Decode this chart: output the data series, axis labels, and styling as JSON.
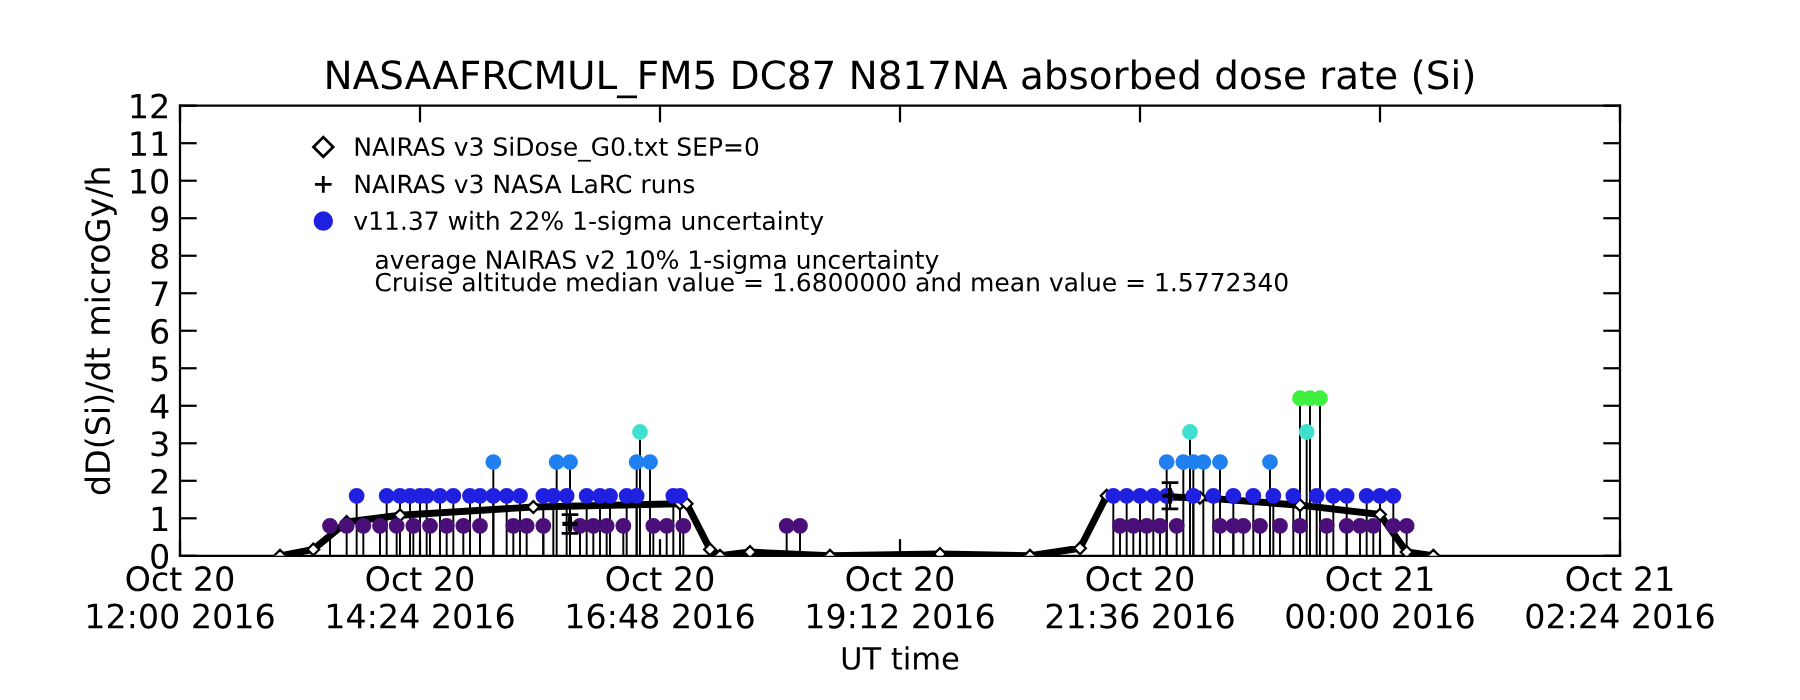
{
  "chart_data": {
    "type": "line",
    "title": "NASAAFRCMUL_FM5 DC87 N817NA absorbed dose rate (Si)",
    "xlabel": "UT time",
    "ylabel": "dD(Si)/dt microGy/h",
    "xlim": [
      "2016-10-20T12:00",
      "2016-10-21T02:24"
    ],
    "xticks": [
      {
        "value": "2016-10-20T12:00",
        "label": "Oct 20\n12:00 2016"
      },
      {
        "value": "2016-10-20T14:24",
        "label": "Oct 20\n14:24 2016"
      },
      {
        "value": "2016-10-20T16:48",
        "label": "Oct 20\n16:48 2016"
      },
      {
        "value": "2016-10-20T19:12",
        "label": "Oct 20\n19:12 2016"
      },
      {
        "value": "2016-10-20T21:36",
        "label": "Oct 20\n21:36 2016"
      },
      {
        "value": "2016-10-21T00:00",
        "label": "Oct 21\n00:00 2016"
      },
      {
        "value": "2016-10-21T02:24",
        "label": "Oct 21\n02:24 2016"
      }
    ],
    "ylim": [
      0,
      12
    ],
    "yticks": [
      0,
      1,
      2,
      3,
      4,
      5,
      6,
      7,
      8,
      9,
      10,
      11,
      12
    ],
    "grid": false,
    "legend": "top left",
    "annotations": [
      "average NAIRAS v2 10% 1-sigma uncertainty",
      "Cruise altitude median value = 1.6800000 and mean value = 1.5772340"
    ],
    "series": [
      {
        "name": "NAIRAS v3 SiDose_G0.txt SEP=0",
        "marker": "diamond",
        "color": "#000000",
        "x": [
          "2016-10-20T13:00",
          "2016-10-20T13:20",
          "2016-10-20T13:40",
          "2016-10-20T14:12",
          "2016-10-20T15:32",
          "2016-10-20T17:00",
          "2016-10-20T17:04",
          "2016-10-20T17:18",
          "2016-10-20T17:24",
          "2016-10-20T17:42",
          "2016-10-20T18:30",
          "2016-10-20T19:36",
          "2016-10-20T20:30",
          "2016-10-20T21:00",
          "2016-10-20T21:16",
          "2016-10-20T22:12",
          "2016-10-20T23:12",
          "2016-10-21T00:00",
          "2016-10-21T00:16",
          "2016-10-21T00:32"
        ],
        "values": [
          0,
          0.17,
          0.9,
          1.08,
          1.3,
          1.39,
          1.39,
          0.17,
          0,
          0.1,
          0,
          0.05,
          0,
          0.2,
          1.6,
          1.55,
          1.35,
          1.1,
          0.1,
          0
        ]
      },
      {
        "name": "NAIRAS v3 NASA LaRC runs",
        "type": "scatter",
        "marker": "cross",
        "color": "#000000",
        "x": [
          "2016-10-20T15:54",
          "2016-10-20T21:54"
        ],
        "values": [
          0.85,
          1.6
        ],
        "errors": [
          0.25,
          0.35
        ]
      },
      {
        "name": "v11.37 with 22% 1-sigma uncertainty",
        "type": "lollipop",
        "marker": "circle",
        "color": "#2020e0",
        "x": [
          "2016-10-20T13:46",
          "2016-10-20T14:04",
          "2016-10-20T14:12",
          "2016-10-20T14:18",
          "2016-10-20T14:24",
          "2016-10-20T14:28",
          "2016-10-20T14:36",
          "2016-10-20T14:44",
          "2016-10-20T14:54",
          "2016-10-20T15:00",
          "2016-10-20T15:08",
          "2016-10-20T15:16",
          "2016-10-20T15:24",
          "2016-10-20T15:38",
          "2016-10-20T15:44",
          "2016-10-20T15:52",
          "2016-10-20T16:04",
          "2016-10-20T16:12",
          "2016-10-20T16:18",
          "2016-10-20T16:28",
          "2016-10-20T16:34",
          "2016-10-20T16:56",
          "2016-10-20T17:00",
          "2016-10-20T13:30",
          "2016-10-20T13:40",
          "2016-10-20T13:50",
          "2016-10-20T14:00",
          "2016-10-20T14:10",
          "2016-10-20T14:20",
          "2016-10-20T14:30",
          "2016-10-20T14:40",
          "2016-10-20T14:50",
          "2016-10-20T15:00",
          "2016-10-20T15:20",
          "2016-10-20T15:28",
          "2016-10-20T15:38",
          "2016-10-20T16:00",
          "2016-10-20T16:08",
          "2016-10-20T16:16",
          "2016-10-20T16:26",
          "2016-10-20T16:44",
          "2016-10-20T16:52",
          "2016-10-20T17:02",
          "2016-10-20T18:04",
          "2016-10-20T18:12",
          "2016-10-20T15:08",
          "2016-10-20T15:46",
          "2016-10-20T15:54",
          "2016-10-20T16:34",
          "2016-10-20T16:42",
          "2016-10-20T16:36",
          "2016-10-20T21:24",
          "2016-10-20T21:32",
          "2016-10-20T21:40",
          "2016-10-20T21:48",
          "2016-10-20T21:58",
          "2016-10-20T22:24",
          "2016-10-20T22:32",
          "2016-10-20T22:38",
          "2016-10-20T22:48",
          "2016-10-20T23:00",
          "2016-10-20T23:12",
          "2016-10-20T23:28",
          "2016-10-20T23:40",
          "2016-10-20T23:48",
          "2016-10-20T23:56",
          "2016-10-21T00:08",
          "2016-10-21T00:16",
          "2016-10-20T21:20",
          "2016-10-20T21:28",
          "2016-10-20T21:36",
          "2016-10-20T21:44",
          "2016-10-20T21:52",
          "2016-10-20T22:08",
          "2016-10-20T22:20",
          "2016-10-20T22:32",
          "2016-10-20T22:44",
          "2016-10-20T22:56",
          "2016-10-20T23:08",
          "2016-10-20T23:22",
          "2016-10-20T23:32",
          "2016-10-20T23:40",
          "2016-10-20T23:52",
          "2016-10-21T00:00",
          "2016-10-21T00:08",
          "2016-10-20T21:52",
          "2016-10-20T22:02",
          "2016-10-20T22:08",
          "2016-10-20T22:14",
          "2016-10-20T22:24",
          "2016-10-20T22:54",
          "2016-10-20T22:06",
          "2016-10-20T23:16",
          "2016-10-20T23:12",
          "2016-10-20T23:18",
          "2016-10-20T23:24"
        ],
        "values": [
          1.6,
          1.6,
          1.6,
          1.6,
          1.6,
          1.6,
          1.6,
          1.6,
          1.6,
          1.6,
          1.6,
          1.6,
          1.6,
          1.6,
          1.6,
          1.6,
          1.6,
          1.6,
          1.6,
          1.6,
          1.6,
          1.6,
          1.6,
          0.8,
          0.8,
          0.8,
          0.8,
          0.8,
          0.8,
          0.8,
          0.8,
          0.8,
          0.8,
          0.8,
          0.8,
          0.8,
          0.8,
          0.8,
          0.8,
          0.8,
          0.8,
          0.8,
          0.8,
          0.8,
          0.8,
          2.5,
          2.5,
          2.5,
          2.5,
          2.5,
          3.3,
          0.8,
          0.8,
          0.8,
          0.8,
          0.8,
          0.8,
          0.8,
          0.8,
          0.8,
          0.8,
          0.8,
          0.8,
          0.8,
          0.8,
          0.8,
          0.8,
          0.8,
          1.6,
          1.6,
          1.6,
          1.6,
          1.6,
          1.6,
          1.6,
          1.6,
          1.6,
          1.6,
          1.6,
          1.6,
          1.6,
          1.6,
          1.6,
          1.6,
          1.6,
          2.5,
          2.5,
          2.5,
          2.5,
          2.5,
          2.5,
          3.3,
          3.3,
          4.2,
          4.2,
          4.2
        ],
        "colors": [
          "#2020e0",
          "#2020e0",
          "#2020e0",
          "#2020e0",
          "#2020e0",
          "#2020e0",
          "#2020e0",
          "#2020e0",
          "#2020e0",
          "#2020e0",
          "#2020e0",
          "#2020e0",
          "#2020e0",
          "#2020e0",
          "#2020e0",
          "#2020e0",
          "#2020e0",
          "#2020e0",
          "#2020e0",
          "#2020e0",
          "#2020e0",
          "#2020e0",
          "#2020e0",
          "#4b0f7a",
          "#4b0f7a",
          "#4b0f7a",
          "#4b0f7a",
          "#4b0f7a",
          "#4b0f7a",
          "#4b0f7a",
          "#4b0f7a",
          "#4b0f7a",
          "#4b0f7a",
          "#4b0f7a",
          "#4b0f7a",
          "#4b0f7a",
          "#4b0f7a",
          "#4b0f7a",
          "#4b0f7a",
          "#4b0f7a",
          "#4b0f7a",
          "#4b0f7a",
          "#4b0f7a",
          "#4b0f7a",
          "#4b0f7a",
          "#2080f0",
          "#2080f0",
          "#2080f0",
          "#2080f0",
          "#2080f0",
          "#40e0d0",
          "#4b0f7a",
          "#4b0f7a",
          "#4b0f7a",
          "#4b0f7a",
          "#4b0f7a",
          "#4b0f7a",
          "#4b0f7a",
          "#4b0f7a",
          "#4b0f7a",
          "#4b0f7a",
          "#4b0f7a",
          "#4b0f7a",
          "#4b0f7a",
          "#4b0f7a",
          "#4b0f7a",
          "#4b0f7a",
          "#4b0f7a",
          "#2020e0",
          "#2020e0",
          "#2020e0",
          "#2020e0",
          "#2020e0",
          "#2020e0",
          "#2020e0",
          "#2020e0",
          "#2020e0",
          "#2020e0",
          "#2020e0",
          "#2020e0",
          "#2020e0",
          "#2020e0",
          "#2020e0",
          "#2020e0",
          "#2020e0",
          "#2080f0",
          "#2080f0",
          "#2080f0",
          "#2080f0",
          "#2080f0",
          "#2080f0",
          "#40e0d0",
          "#40e0d0",
          "#40f040",
          "#40f040",
          "#40f040"
        ]
      }
    ]
  }
}
